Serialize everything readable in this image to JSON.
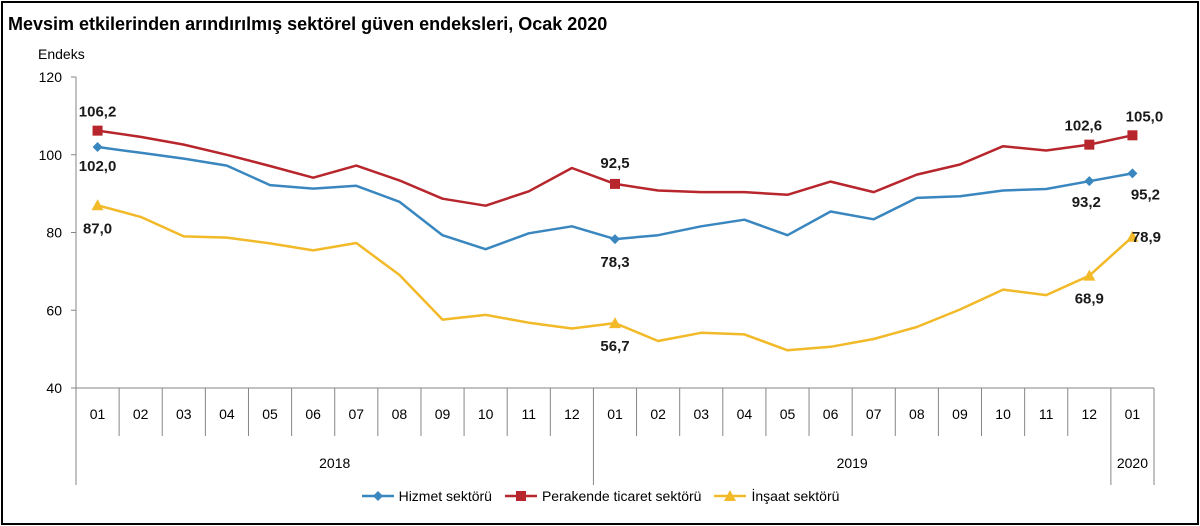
{
  "title": "Mevsim etkilerinden arındırılmış sektörel güven endeksleri, Ocak 2020",
  "chart_data": {
    "type": "line",
    "title": "Mevsim etkilerinden arındırılmış sektörel güven endeksleri, Ocak 2020",
    "ylabel": "Endeks",
    "xlabel": "",
    "ylim": [
      40,
      120
    ],
    "yticks": [
      40,
      60,
      80,
      100,
      120
    ],
    "grid": false,
    "legend_position": "bottom",
    "categories": [
      "01",
      "02",
      "03",
      "04",
      "05",
      "06",
      "07",
      "08",
      "09",
      "10",
      "11",
      "12",
      "01",
      "02",
      "03",
      "04",
      "05",
      "06",
      "07",
      "08",
      "09",
      "10",
      "11",
      "12",
      "01"
    ],
    "year_groups": [
      {
        "label": "2018",
        "start": 0,
        "end": 11
      },
      {
        "label": "2019",
        "start": 12,
        "end": 23
      },
      {
        "label": "2020",
        "start": 24,
        "end": 24
      }
    ],
    "series": [
      {
        "name": "Hizmet sektörü",
        "color": "#3a87c0",
        "marker": "diamond",
        "values": [
          102.0,
          100.5,
          99.0,
          97.2,
          92.2,
          91.3,
          92.0,
          87.9,
          79.3,
          75.7,
          79.8,
          81.6,
          78.3,
          79.3,
          81.6,
          83.3,
          79.3,
          85.4,
          83.4,
          88.9,
          89.3,
          90.8,
          91.2,
          93.2,
          95.2
        ],
        "labels": [
          {
            "index": 0,
            "text": "102,0"
          },
          {
            "index": 12,
            "text": "78,3"
          },
          {
            "index": 23,
            "text": "93,2"
          },
          {
            "index": 24,
            "text": "95,2"
          }
        ]
      },
      {
        "name": "Perakende ticaret sektörü",
        "color": "#b7262c",
        "marker": "square",
        "values": [
          106.2,
          104.6,
          102.6,
          100.0,
          97.1,
          94.1,
          97.2,
          93.4,
          88.7,
          86.9,
          90.6,
          96.6,
          92.5,
          90.8,
          90.4,
          90.4,
          89.7,
          93.1,
          90.4,
          94.9,
          97.5,
          102.2,
          101.1,
          102.6,
          105.0
        ],
        "labels": [
          {
            "index": 0,
            "text": "106,2"
          },
          {
            "index": 12,
            "text": "92,5"
          },
          {
            "index": 23,
            "text": "102,6"
          },
          {
            "index": 24,
            "text": "105,0"
          }
        ]
      },
      {
        "name": "İnşaat sektörü",
        "color": "#f2b928",
        "marker": "triangle",
        "values": [
          87.0,
          84.0,
          79.0,
          78.7,
          77.2,
          75.4,
          77.3,
          69.1,
          57.6,
          58.8,
          56.8,
          55.3,
          56.7,
          52.1,
          54.2,
          53.8,
          49.7,
          50.6,
          52.6,
          55.7,
          60.2,
          65.3,
          63.9,
          68.9,
          78.9
        ],
        "labels": [
          {
            "index": 0,
            "text": "87,0"
          },
          {
            "index": 12,
            "text": "56,7"
          },
          {
            "index": 23,
            "text": "68,9"
          },
          {
            "index": 24,
            "text": "78,9"
          }
        ]
      }
    ]
  }
}
